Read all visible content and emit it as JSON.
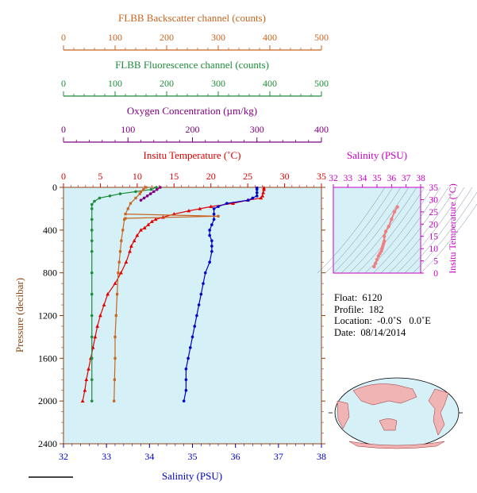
{
  "colors": {
    "backscatter": "#c8641e",
    "fluorescence": "#1e8c3c",
    "oxygen": "#800080",
    "temperature": "#e00000",
    "salinity": "#0000c8",
    "ts_axis": "#c800c8",
    "plot_bg": "#d6f0f8",
    "axis": "#8b4513"
  },
  "axes": {
    "backscatter_label": "FLBB Backscatter channel (counts)",
    "backscatter_ticks": [
      "0",
      "100",
      "200",
      "300",
      "400",
      "500"
    ],
    "fluorescence_label": "FLBB Fluorescence channel (counts)",
    "fluorescence_ticks": [
      "0",
      "100",
      "200",
      "300",
      "400",
      "500"
    ],
    "oxygen_label": "Oxygen Concentration (µm/kg)",
    "oxygen_ticks": [
      "0",
      "100",
      "200",
      "300",
      "400"
    ],
    "temperature_label": "Insitu Temperature (˚C)",
    "temperature_ticks": [
      "0",
      "5",
      "10",
      "15",
      "20",
      "25",
      "30",
      "35"
    ],
    "pressure_label": "Pressure (decibar)",
    "pressure_ticks": [
      "0",
      "400",
      "800",
      "1200",
      "1600",
      "2000",
      "2400"
    ],
    "salinity_label": "Salinity (PSU)",
    "salinity_ticks": [
      "32",
      "33",
      "34",
      "35",
      "36",
      "37",
      "38"
    ]
  },
  "ts_plot": {
    "salinity_label": "Salinity (PSU)",
    "salinity_ticks": [
      "32",
      "33",
      "34",
      "35",
      "36",
      "37",
      "38"
    ],
    "temperature_label": "Insitu Temperature (˚C)",
    "temperature_ticks": [
      "35",
      "30",
      "25",
      "20",
      "15",
      "10",
      "5",
      "0"
    ]
  },
  "info": {
    "float": "Float:  6120",
    "profile": "Profile:  182",
    "location": "Location:  -0.0˚S   0.0˚E",
    "date": "Date:  08/14/2014"
  },
  "chart_data": {
    "type": "line",
    "y_axis": {
      "label": "Pressure (decibar)",
      "range": [
        0,
        2400
      ],
      "inverted": true
    },
    "series": [
      {
        "name": "Insitu Temperature",
        "units": "˚C",
        "range": [
          0,
          35
        ],
        "pressure": [
          5,
          20,
          50,
          80,
          100,
          120,
          150,
          180,
          200,
          220,
          250,
          280,
          300,
          320,
          350,
          380,
          400,
          450,
          500,
          550,
          600,
          700,
          800,
          900,
          1000,
          1100,
          1200,
          1300,
          1400,
          1500,
          1600,
          1700,
          1800,
          1900,
          2000
        ],
        "values": [
          27.2,
          27.2,
          27.1,
          27.0,
          26.8,
          25.0,
          23.0,
          20.0,
          18.5,
          17.0,
          15.0,
          13.5,
          12.5,
          12.0,
          11.5,
          11.0,
          10.5,
          10.0,
          9.6,
          9.2,
          9.0,
          8.5,
          7.8,
          7.0,
          6.0,
          5.5,
          5.0,
          4.6,
          4.3,
          4.0,
          3.7,
          3.4,
          3.1,
          2.9,
          2.6
        ]
      },
      {
        "name": "Salinity",
        "units": "PSU",
        "range": [
          32,
          38
        ],
        "pressure": [
          5,
          20,
          50,
          80,
          100,
          120,
          150,
          180,
          200,
          250,
          300,
          350,
          400,
          450,
          500,
          550,
          600,
          700,
          800,
          900,
          1000,
          1100,
          1200,
          1300,
          1400,
          1500,
          1600,
          1700,
          1800,
          1900,
          2000
        ],
        "values": [
          36.5,
          36.5,
          36.5,
          36.5,
          36.4,
          36.3,
          35.8,
          35.6,
          35.5,
          35.5,
          35.5,
          35.45,
          35.4,
          35.4,
          35.45,
          35.45,
          35.45,
          35.4,
          35.3,
          35.25,
          35.2,
          35.15,
          35.1,
          35.05,
          35.0,
          34.95,
          34.9,
          34.85,
          34.85,
          34.85,
          34.8
        ]
      },
      {
        "name": "FLBB Fluorescence channel",
        "units": "counts",
        "range": [
          0,
          500
        ],
        "pressure": [
          0,
          20,
          40,
          60,
          80,
          100,
          130,
          160,
          200,
          300,
          400,
          500,
          600,
          800,
          1000,
          1200,
          1400,
          1600,
          1800,
          2000
        ],
        "values": [
          180,
          170,
          140,
          110,
          90,
          70,
          60,
          55,
          55,
          55,
          55,
          55,
          55,
          55,
          55,
          55,
          55,
          55,
          55,
          55
        ]
      },
      {
        "name": "FLBB Backscatter channel",
        "units": "counts",
        "range": [
          0,
          500
        ],
        "pressure": [
          0,
          20,
          40,
          60,
          100,
          150,
          200,
          250,
          270,
          290,
          300,
          400,
          500,
          600,
          700,
          800,
          1000,
          1200,
          1400,
          1600,
          1800,
          2000
        ],
        "values": [
          160,
          155,
          150,
          148,
          140,
          130,
          125,
          120,
          300,
          120,
          118,
          115,
          112,
          110,
          108,
          106,
          104,
          102,
          100,
          100,
          99,
          98
        ]
      },
      {
        "name": "Oxygen Concentration",
        "units": "µm/kg",
        "range": [
          0,
          400
        ],
        "pressure": [
          0,
          20,
          40,
          60,
          80,
          100,
          120
        ],
        "values": [
          150,
          145,
          140,
          135,
          130,
          125,
          120
        ]
      }
    ],
    "ts_points": {
      "salinity": [
        36.4,
        36.2,
        36.0,
        35.8,
        35.6,
        35.5,
        35.5,
        35.45,
        35.4,
        35.35,
        35.3,
        35.2,
        35.1,
        35.0,
        34.9,
        34.8
      ],
      "temperature": [
        27.0,
        25.0,
        22.0,
        19.0,
        17.0,
        15.0,
        13.0,
        12.0,
        11.0,
        10.0,
        9.0,
        8.0,
        7.0,
        5.5,
        4.0,
        2.6
      ]
    }
  }
}
